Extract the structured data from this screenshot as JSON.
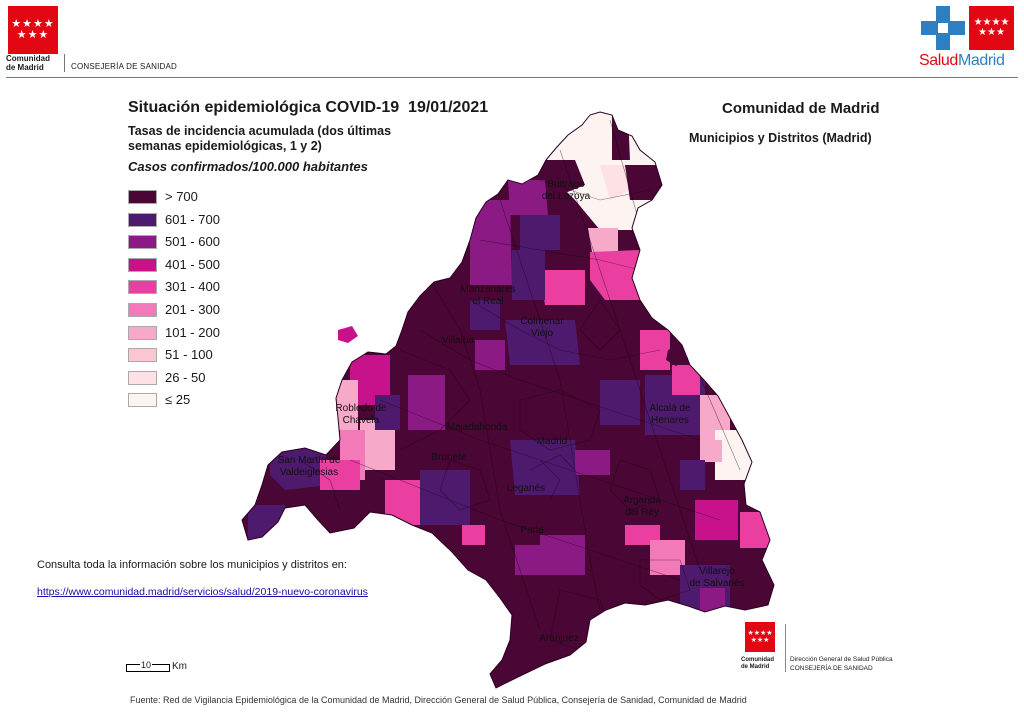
{
  "header": {
    "org_stars": "★★★★\n★★★",
    "org_name_line1": "Comunidad",
    "org_name_line2": "de Madrid",
    "department": "CONSEJERÍA DE SANIDAD",
    "brand_left": "Salud",
    "brand_right": "Madrid",
    "brand_colors": {
      "red": "#e30613",
      "blue": "#2d7fc1"
    }
  },
  "titles": {
    "main": "Situación epidemiológica COVID-19  19/01/2021",
    "subtitle": "Tasas de incidencia acumulada (dos últimas semanas epidemiológicas, 1 y 2)",
    "units": "Casos confirmados/100.000 habitantes",
    "region": "Comunidad de Madrid",
    "region_sub": "Municipios y Distritos (Madrid)"
  },
  "legend": [
    {
      "label": "> 700",
      "color": "#4a0634"
    },
    {
      "label": "601 - 700",
      "color": "#4d1a6e"
    },
    {
      "label": "501 - 600",
      "color": "#8b1a84"
    },
    {
      "label": "401 - 500",
      "color": "#c8128c"
    },
    {
      "label": "301 - 400",
      "color": "#ea3fa1"
    },
    {
      "label": "201 - 300",
      "color": "#f27ab8"
    },
    {
      "label": "101 - 200",
      "color": "#f7a9c9"
    },
    {
      "label": "51 - 100",
      "color": "#fbc6cf"
    },
    {
      "label": "26 - 50",
      "color": "#fde1e4"
    },
    {
      "label": "≤ 25",
      "color": "#fdf4f2"
    }
  ],
  "places": [
    "Buitrago\ndel Lozoya",
    "Manzanares\nel Real",
    "Colmenar\nViejo",
    "Villalba",
    "Robledo de\nChavela",
    "San Martín de\nValdeiglesias",
    "Majadahonda",
    "Brunete",
    "Madrid",
    "Alcalá de\nHenares",
    "Leganés",
    "Arganda\ndel Rey",
    "Parla",
    "Villarejo\nde Salvanés",
    "Aranjuez"
  ],
  "info": {
    "consulta": "Consulta toda la información sobre los municipios y distritos en:",
    "link": "https://www.comunidad.madrid/servicios/salud/2019-nuevo-coronavirus"
  },
  "scale": {
    "value": "10",
    "unit": "Km"
  },
  "footer": {
    "org_name": "Comunidad\nde Madrid",
    "directorate": "Dirección General de Salud Pública",
    "department": "CONSEJERÍA DE SANIDAD",
    "source": "Fuente: Red de Vigilancia Epidemiológica de la Comunidad de Madrid, Dirección General de Salud Pública, Consejería de Sanidad, Comunidad de Madrid"
  }
}
